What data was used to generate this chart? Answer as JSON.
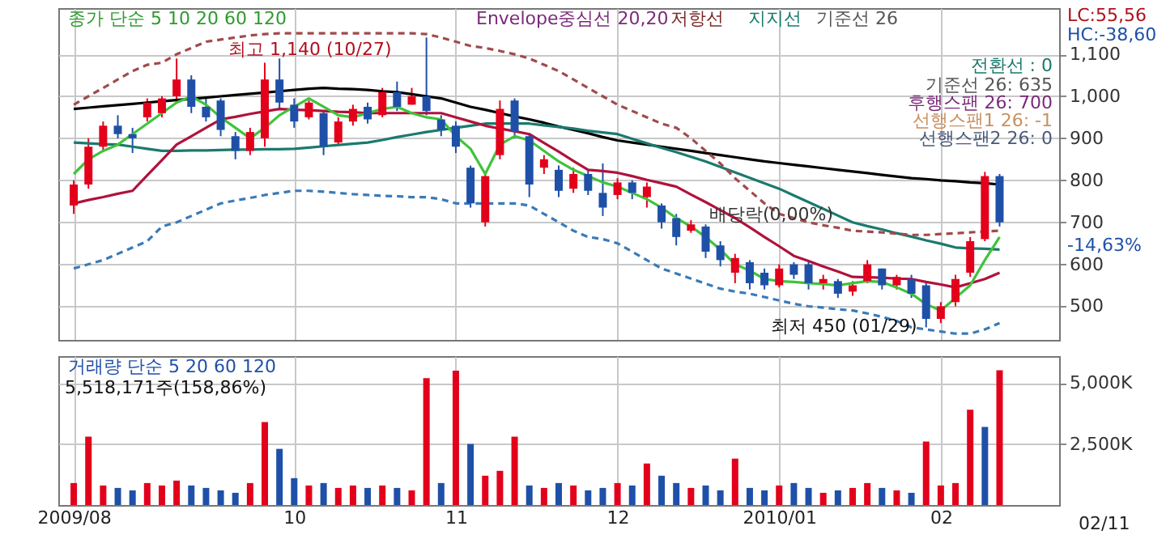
{
  "chart_data": [
    {
      "type": "candlestick",
      "tick_labels": "y",
      "grid": true,
      "categories": [
        "2009/08",
        null,
        null,
        null,
        null,
        null,
        null,
        null,
        null,
        null,
        null,
        null,
        null,
        null,
        null,
        "10",
        null,
        null,
        null,
        null,
        null,
        null,
        null,
        null,
        null,
        null,
        "11",
        null,
        null,
        null,
        null,
        null,
        null,
        null,
        null,
        null,
        null,
        "12",
        null,
        null,
        null,
        null,
        null,
        null,
        null,
        null,
        null,
        null,
        "2010/01",
        null,
        null,
        null,
        null,
        null,
        null,
        null,
        null,
        null,
        null,
        "02",
        null,
        null,
        null,
        null,
        null,
        null,
        null
      ],
      "ohlc": [
        [
          740,
          800,
          720,
          790
        ],
        [
          790,
          900,
          780,
          880
        ],
        [
          880,
          940,
          870,
          930
        ],
        [
          930,
          955,
          900,
          910
        ],
        [
          910,
          925,
          865,
          900
        ],
        [
          950,
          995,
          940,
          985
        ],
        [
          960,
          1000,
          950,
          995
        ],
        [
          1000,
          1090,
          985,
          1040
        ],
        [
          1040,
          1050,
          960,
          975
        ],
        [
          975,
          1000,
          940,
          950
        ],
        [
          990,
          995,
          905,
          920
        ],
        [
          905,
          915,
          850,
          870
        ],
        [
          870,
          925,
          860,
          915
        ],
        [
          900,
          1080,
          880,
          1040
        ],
        [
          1040,
          1090,
          970,
          985
        ],
        [
          980,
          995,
          925,
          940
        ],
        [
          950,
          990,
          945,
          985
        ],
        [
          960,
          965,
          860,
          880
        ],
        [
          890,
          950,
          885,
          940
        ],
        [
          940,
          980,
          930,
          970
        ],
        [
          975,
          985,
          935,
          945
        ],
        [
          955,
          1020,
          950,
          1010
        ],
        [
          1010,
          1035,
          965,
          975
        ],
        [
          980,
          1020,
          980,
          1000
        ],
        [
          1000,
          1140,
          955,
          965
        ],
        [
          945,
          955,
          905,
          920
        ],
        [
          930,
          940,
          865,
          880
        ],
        [
          830,
          835,
          735,
          745
        ],
        [
          700,
          820,
          690,
          810
        ],
        [
          860,
          990,
          850,
          970
        ],
        [
          990,
          995,
          900,
          915
        ],
        [
          905,
          910,
          760,
          790
        ],
        [
          830,
          860,
          815,
          850
        ],
        [
          825,
          835,
          760,
          775
        ],
        [
          780,
          830,
          770,
          815
        ],
        [
          815,
          825,
          765,
          775
        ],
        [
          770,
          840,
          715,
          735
        ],
        [
          765,
          805,
          755,
          795
        ],
        [
          795,
          800,
          755,
          770
        ],
        [
          760,
          795,
          735,
          785
        ],
        [
          740,
          745,
          685,
          700
        ],
        [
          710,
          720,
          645,
          665
        ],
        [
          680,
          705,
          675,
          695
        ],
        [
          690,
          695,
          615,
          630
        ],
        [
          645,
          655,
          595,
          610
        ],
        [
          580,
          625,
          555,
          615
        ],
        [
          605,
          610,
          540,
          555
        ],
        [
          580,
          590,
          540,
          550
        ],
        [
          550,
          600,
          545,
          590
        ],
        [
          600,
          605,
          565,
          575
        ],
        [
          600,
          605,
          540,
          555
        ],
        [
          555,
          575,
          540,
          565
        ],
        [
          560,
          565,
          520,
          530
        ],
        [
          535,
          560,
          525,
          550
        ],
        [
          560,
          610,
          555,
          600
        ],
        [
          590,
          590,
          540,
          550
        ],
        [
          550,
          575,
          540,
          570
        ],
        [
          565,
          575,
          520,
          530
        ],
        [
          550,
          555,
          450,
          470
        ],
        [
          470,
          510,
          460,
          500
        ],
        [
          510,
          575,
          500,
          565
        ],
        [
          580,
          665,
          570,
          655
        ],
        [
          660,
          820,
          655,
          810
        ],
        [
          810,
          815,
          690,
          700
        ],
        null,
        null,
        null
      ],
      "ylim": [
        420,
        1210
      ],
      "yticks": [
        500,
        600,
        700,
        800,
        900,
        {
          "value": 1000,
          "label": "1,000"
        },
        {
          "value": 1100,
          "label": "1,100"
        }
      ],
      "series": [
        {
          "type": "line",
          "color": "#000000",
          "values": [
            970,
            973,
            976,
            979,
            982,
            985,
            988,
            991,
            994,
            997,
            1000,
            1003,
            1006,
            1009,
            1012,
            1015,
            1018,
            1020,
            1018,
            1017,
            1015,
            1012,
            1010,
            1005,
            1000,
            995,
            985,
            975,
            968,
            960,
            952,
            945,
            937,
            928,
            920,
            912,
            903,
            895,
            890,
            885,
            880,
            875,
            870,
            865,
            860,
            855,
            850,
            845,
            841,
            837,
            833,
            829,
            825,
            821,
            817,
            813,
            809,
            805,
            803,
            800,
            798,
            795,
            793,
            790,
            null,
            null,
            null
          ]
        },
        {
          "type": "line",
          "color": "#1a7a6e",
          "values": [
            890,
            888,
            886,
            885,
            880,
            875,
            870,
            870,
            871,
            871,
            872,
            873,
            873,
            874,
            874,
            875,
            878,
            881,
            884,
            887,
            890,
            896,
            903,
            909,
            915,
            920,
            925,
            930,
            935,
            935,
            935,
            935,
            931,
            927,
            923,
            918,
            914,
            910,
            899,
            888,
            877,
            867,
            856,
            845,
            832,
            819,
            806,
            793,
            780,
            764,
            748,
            732,
            716,
            700,
            691,
            683,
            674,
            666,
            657,
            649,
            640,
            638,
            637,
            635,
            null,
            null,
            null
          ]
        },
        {
          "type": "line",
          "color": "#b0123c",
          "values": [
            745,
            753,
            760,
            768,
            775,
            812,
            848,
            885,
            905,
            925,
            945,
            951,
            958,
            964,
            970,
            968,
            967,
            965,
            963,
            962,
            960,
            960,
            960,
            960,
            960,
            960,
            950,
            940,
            930,
            923,
            917,
            910,
            889,
            868,
            846,
            825,
            822,
            818,
            810,
            801,
            793,
            785,
            766,
            748,
            729,
            710,
            688,
            665,
            643,
            620,
            608,
            595,
            583,
            570,
            569,
            568,
            566,
            565,
            558,
            552,
            545,
            555,
            565,
            580,
            null,
            null,
            null
          ]
        },
        {
          "type": "line",
          "color": "#3ec43a",
          "values": [
            815,
            850,
            870,
            885,
            910,
            935,
            960,
            985,
            1000,
            980,
            950,
            925,
            900,
            925,
            955,
            975,
            995,
            975,
            955,
            950,
            960,
            970,
            975,
            960,
            950,
            945,
            905,
            875,
            815,
            885,
            905,
            895,
            870,
            845,
            825,
            810,
            795,
            785,
            770,
            755,
            735,
            710,
            690,
            665,
            635,
            600,
            585,
            565,
            560,
            558,
            555,
            553,
            550,
            555,
            560,
            558,
            545,
            530,
            505,
            490,
            520,
            550,
            610,
            665,
            null,
            null,
            null
          ]
        },
        {
          "type": "line",
          "color": "#a04a4a",
          "line_style": "dashed",
          "values": [
            980,
            1000,
            1020,
            1040,
            1060,
            1075,
            1080,
            1100,
            1115,
            1130,
            1135,
            1140,
            1145,
            1148,
            1150,
            1150,
            1150,
            1150,
            1150,
            1150,
            1150,
            1150,
            1150,
            1150,
            1148,
            1140,
            1130,
            1120,
            1115,
            1108,
            1100,
            1090,
            1075,
            1060,
            1040,
            1020,
            1000,
            980,
            965,
            950,
            935,
            925,
            900,
            870,
            840,
            805,
            775,
            745,
            720,
            710,
            700,
            693,
            687,
            680,
            678,
            676,
            673,
            670,
            670,
            672,
            674,
            676,
            678,
            680,
            null,
            null,
            null
          ]
        },
        {
          "type": "line",
          "color": "#3a7ab8",
          "line_style": "dashed",
          "values": [
            590,
            600,
            610,
            625,
            640,
            655,
            690,
            700,
            715,
            730,
            745,
            752,
            758,
            765,
            770,
            775,
            775,
            773,
            770,
            767,
            765,
            763,
            762,
            760,
            760,
            755,
            745,
            745,
            745,
            745,
            745,
            740,
            720,
            700,
            680,
            665,
            660,
            650,
            630,
            610,
            590,
            578,
            566,
            554,
            542,
            535,
            530,
            522,
            514,
            506,
            500,
            497,
            493,
            490,
            483,
            475,
            465,
            450,
            445,
            440,
            435,
            435,
            445,
            460,
            null,
            null,
            null
          ]
        }
      ],
      "annotations": [
        "종가 단순 5  10  20  60  120",
        "Envelope중심선 20,20",
        "저항선",
        "지지선",
        "기준선 26",
        "최고 1,140 (10/27)",
        "최저 450 (01/29)",
        "배당락(0,00%)",
        "전환선 : 0",
        "기준선 26: 635",
        "후행스팬 26: 700",
        "선행스팬1 26: -1",
        "선행스팬2 26: 0",
        "LC:55,56",
        "HC:-38,60",
        "-14,63%"
      ]
    },
    {
      "type": "bar",
      "grid": true,
      "categories": [
        "2009/08",
        null,
        null,
        null,
        null,
        null,
        null,
        null,
        null,
        null,
        null,
        null,
        null,
        null,
        null,
        "10",
        null,
        null,
        null,
        null,
        null,
        null,
        null,
        null,
        null,
        null,
        "11",
        null,
        null,
        null,
        null,
        null,
        null,
        null,
        null,
        null,
        null,
        "12",
        null,
        null,
        null,
        null,
        null,
        null,
        null,
        null,
        null,
        null,
        "2010/01",
        null,
        null,
        null,
        null,
        null,
        null,
        null,
        null,
        null,
        null,
        "02",
        null,
        null,
        null,
        null,
        null,
        null,
        null
      ],
      "values": [
        900,
        2800,
        800,
        700,
        600,
        900,
        800,
        1000,
        800,
        700,
        600,
        500,
        900,
        3400,
        2300,
        1100,
        800,
        900,
        700,
        800,
        700,
        800,
        700,
        600,
        5200,
        900,
        5500,
        2500,
        1200,
        1400,
        2800,
        800,
        700,
        900,
        800,
        600,
        700,
        900,
        800,
        1700,
        1200,
        900,
        700,
        800,
        600,
        1900,
        700,
        600,
        800,
        900,
        700,
        500,
        600,
        700,
        900,
        700,
        600,
        500,
        2600,
        800,
        900,
        3900,
        3200,
        5518,
        null,
        null,
        null
      ],
      "colors": [
        "#e3001b",
        "#e3001b",
        "#e3001b",
        "#1f50a8",
        "#1f50a8",
        "#e3001b",
        "#e3001b",
        "#e3001b",
        "#1f50a8",
        "#1f50a8",
        "#1f50a8",
        "#1f50a8",
        "#e3001b",
        "#e3001b",
        "#1f50a8",
        "#1f50a8",
        "#e3001b",
        "#1f50a8",
        "#e3001b",
        "#e3001b",
        "#1f50a8",
        "#e3001b",
        "#1f50a8",
        "#e3001b",
        "#e3001b",
        "#1f50a8",
        "#e3001b",
        "#1f50a8",
        "#e3001b",
        "#e3001b",
        "#e3001b",
        "#1f50a8",
        "#e3001b",
        "#1f50a8",
        "#e3001b",
        "#1f50a8",
        "#1f50a8",
        "#e3001b",
        "#1f50a8",
        "#e3001b",
        "#1f50a8",
        "#1f50a8",
        "#e3001b",
        "#1f50a8",
        "#1f50a8",
        "#e3001b",
        "#1f50a8",
        "#1f50a8",
        "#e3001b",
        "#1f50a8",
        "#1f50a8",
        "#e3001b",
        "#1f50a8",
        "#e3001b",
        "#e3001b",
        "#1f50a8",
        "#e3001b",
        "#1f50a8",
        "#e3001b",
        "#e3001b",
        "#e3001b",
        "#e3001b",
        "#1f50a8",
        "#e3001b",
        null,
        null,
        null
      ],
      "ylim": [
        0,
        6100
      ],
      "yticks": [
        {
          "value": 2500,
          "label": "2,500K"
        },
        {
          "value": 5000,
          "label": "5,000K"
        }
      ],
      "annotations": [
        "거래량 단순 5  20  60  120",
        "5,518,171주(158,86%)",
        "02/11"
      ]
    }
  ]
}
